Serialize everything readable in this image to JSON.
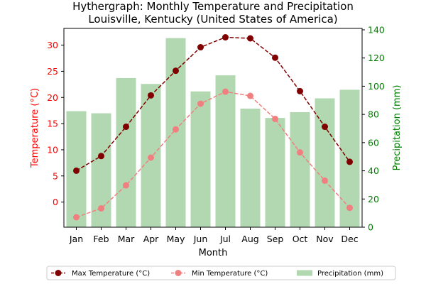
{
  "chart_data": {
    "type": "bar",
    "title": "Hythergraph: Monthly Temperature and Precipitation",
    "subtitle": "Louisville, Kentucky (United States of America)",
    "xlabel": "Month",
    "ylabel_left": "Temperature (°C)",
    "ylabel_right": "Precipitation (mm)",
    "categories": [
      "Jan",
      "Feb",
      "Mar",
      "Apr",
      "May",
      "Jun",
      "Jul",
      "Aug",
      "Sep",
      "Oct",
      "Nov",
      "Dec"
    ],
    "ylim_left": [
      -4.8,
      33.2
    ],
    "yticks_left": [
      0,
      5,
      10,
      15,
      20,
      25,
      30
    ],
    "ylim_right": [
      0,
      141
    ],
    "yticks_right": [
      0,
      20,
      40,
      60,
      80,
      100,
      120,
      140
    ],
    "legend_position": "bottom",
    "series": [
      {
        "name": "Max Temperature (°C)",
        "kind": "line",
        "axis": "left",
        "color": "#800000",
        "dash": "dashed",
        "values": [
          6.0,
          8.8,
          14.4,
          20.4,
          25.1,
          29.6,
          31.5,
          31.3,
          27.6,
          21.2,
          14.4,
          7.7
        ]
      },
      {
        "name": "Min Temperature (°C)",
        "kind": "line",
        "axis": "left",
        "color": "#f08080",
        "dash": "dashed",
        "values": [
          -2.9,
          -1.2,
          3.2,
          8.5,
          13.9,
          18.8,
          21.1,
          20.3,
          15.9,
          9.5,
          4.1,
          -1.1
        ]
      },
      {
        "name": "Precipitation (mm)",
        "kind": "bar",
        "axis": "right",
        "color": "#b2d8b2",
        "values": [
          82.3,
          80.8,
          105.8,
          101.6,
          134.1,
          96.3,
          107.7,
          84.1,
          77.5,
          81.6,
          91.4,
          97.5
        ]
      }
    ]
  }
}
